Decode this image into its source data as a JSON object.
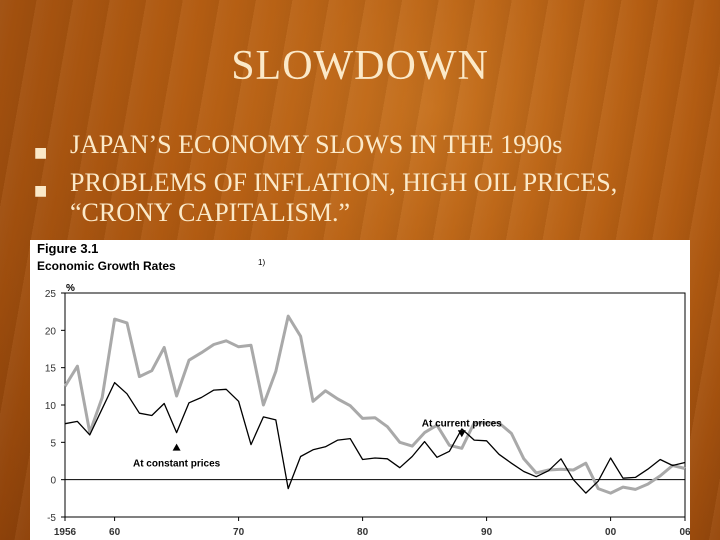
{
  "slide": {
    "title": "SLOWDOWN",
    "bullets": [
      "JAPAN’S ECONOMY SLOWS IN THE 1990s",
      "PROBLEMS OF INFLATION, HIGH OIL PRICES, “CRONY CAPITALISM.”"
    ],
    "bullet_marker": "■"
  },
  "colors": {
    "background": "#b45d12",
    "text": "#fbe9c8",
    "current_series": "#a9a9a9",
    "constant_series": "#000000"
  },
  "chart_data": {
    "type": "line",
    "figure_label": "Figure 3.1",
    "title": "Economic Growth Rates",
    "title_footnote": "1)",
    "ylabel": "%",
    "ylim": [
      -5,
      25
    ],
    "yticks": [
      25,
      20,
      15,
      10,
      5,
      0,
      -5
    ],
    "xlim": [
      1956,
      2006
    ],
    "xticks": [
      1956,
      1960,
      1970,
      1980,
      1990,
      2000,
      2006
    ],
    "xtick_labels": [
      "1956",
      "60",
      "70",
      "80",
      "90",
      "00",
      "06"
    ],
    "zero_line": true,
    "series": [
      {
        "name": "At current prices",
        "color": "#a9a9a9",
        "annotation_position": "above",
        "annotation_x": 1988,
        "x": [
          1956,
          1957,
          1958,
          1959,
          1960,
          1961,
          1962,
          1963,
          1964,
          1965,
          1966,
          1967,
          1968,
          1969,
          1970,
          1971,
          1972,
          1973,
          1974,
          1975,
          1976,
          1977,
          1978,
          1979,
          1980,
          1981,
          1982,
          1983,
          1984,
          1985,
          1986,
          1987,
          1988,
          1989,
          1990,
          1991,
          1992,
          1993,
          1994,
          1995,
          1996,
          1997,
          1998,
          1999,
          2000,
          2001,
          2002,
          2003,
          2004,
          2005,
          2006
        ],
        "values": [
          12.5,
          15.2,
          6.3,
          11.0,
          21.5,
          21.0,
          13.8,
          14.6,
          17.7,
          11.2,
          16.0,
          17.0,
          18.1,
          18.6,
          17.8,
          18.0,
          10.0,
          14.5,
          21.9,
          19.2,
          10.5,
          11.9,
          10.8,
          9.9,
          8.2,
          8.3,
          7.1,
          5.0,
          4.5,
          6.3,
          7.3,
          4.6,
          4.2,
          7.6,
          7.6,
          7.6,
          6.2,
          2.8,
          0.9,
          1.3,
          1.4,
          1.3,
          2.2,
          -1.2,
          -1.8,
          -1.0,
          -1.3,
          -0.6,
          0.5,
          1.9,
          1.5
        ]
      },
      {
        "name": "At constant prices",
        "color": "#000000",
        "annotation_position": "below",
        "annotation_x": 1965,
        "x": [
          1956,
          1957,
          1958,
          1959,
          1960,
          1961,
          1962,
          1963,
          1964,
          1965,
          1966,
          1967,
          1968,
          1969,
          1970,
          1971,
          1972,
          1973,
          1974,
          1975,
          1976,
          1977,
          1978,
          1979,
          1980,
          1981,
          1982,
          1983,
          1984,
          1985,
          1986,
          1987,
          1988,
          1989,
          1990,
          1991,
          1992,
          1993,
          1994,
          1995,
          1996,
          1997,
          1998,
          1999,
          2000,
          2001,
          2002,
          2003,
          2004,
          2005,
          2006
        ],
        "values": [
          7.5,
          7.8,
          6.0,
          9.5,
          13.0,
          11.5,
          8.9,
          8.6,
          10.2,
          6.3,
          10.3,
          11.0,
          12.0,
          12.1,
          10.5,
          4.7,
          8.4,
          8.0,
          -1.2,
          3.1,
          4.0,
          4.4,
          5.3,
          5.5,
          2.7,
          2.9,
          2.8,
          1.6,
          3.1,
          5.1,
          3.0,
          3.8,
          6.8,
          5.3,
          5.2,
          3.4,
          2.2,
          1.1,
          0.4,
          1.2,
          2.8,
          0.0,
          -1.8,
          -0.2,
          2.9,
          0.2,
          0.3,
          1.4,
          2.7,
          1.9,
          2.3
        ]
      }
    ]
  }
}
